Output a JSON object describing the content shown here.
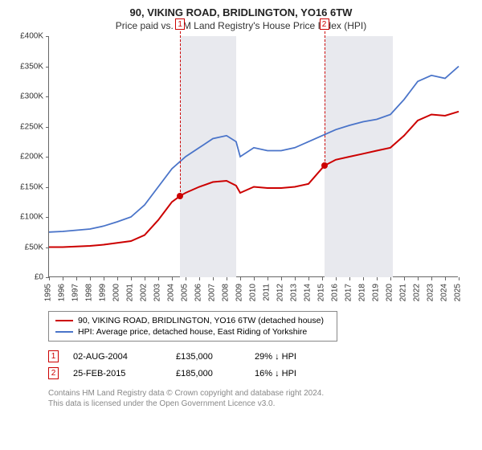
{
  "title": "90, VIKING ROAD, BRIDLINGTON, YO16 6TW",
  "subtitle": "Price paid vs. HM Land Registry's House Price Index (HPI)",
  "chart": {
    "type": "line",
    "background_color": "#ffffff",
    "shade_color": "#e8e9ee",
    "axis_color": "#666666",
    "ylim": [
      0,
      400000
    ],
    "ytick_step": 50000,
    "y_ticks": [
      "£0",
      "£50K",
      "£100K",
      "£150K",
      "£200K",
      "£250K",
      "£300K",
      "£350K",
      "£400K"
    ],
    "xlim": [
      1995,
      2025
    ],
    "x_ticks": [
      "1995",
      "1996",
      "1997",
      "1998",
      "1999",
      "2000",
      "2001",
      "2002",
      "2003",
      "2004",
      "2005",
      "2006",
      "2007",
      "2008",
      "2009",
      "2010",
      "2011",
      "2012",
      "2013",
      "2014",
      "2015",
      "2016",
      "2017",
      "2018",
      "2019",
      "2020",
      "2021",
      "2022",
      "2023",
      "2024",
      "2025"
    ],
    "shade_ranges": [
      [
        2004.6,
        2008.7
      ],
      [
        2015.15,
        2020.2
      ]
    ],
    "series": [
      {
        "name": "property",
        "label": "90, VIKING ROAD, BRIDLINGTON, YO16 6TW (detached house)",
        "color": "#cc0000",
        "line_width": 2,
        "points": [
          [
            1995,
            50000
          ],
          [
            1996,
            50000
          ],
          [
            1997,
            51000
          ],
          [
            1998,
            52000
          ],
          [
            1999,
            54000
          ],
          [
            2000,
            57000
          ],
          [
            2001,
            60000
          ],
          [
            2002,
            70000
          ],
          [
            2003,
            95000
          ],
          [
            2004,
            125000
          ],
          [
            2004.6,
            135000
          ],
          [
            2005,
            140000
          ],
          [
            2006,
            150000
          ],
          [
            2007,
            158000
          ],
          [
            2008,
            160000
          ],
          [
            2008.7,
            152000
          ],
          [
            2009,
            140000
          ],
          [
            2010,
            150000
          ],
          [
            2011,
            148000
          ],
          [
            2012,
            148000
          ],
          [
            2013,
            150000
          ],
          [
            2014,
            155000
          ],
          [
            2015.15,
            185000
          ],
          [
            2016,
            195000
          ],
          [
            2017,
            200000
          ],
          [
            2018,
            205000
          ],
          [
            2019,
            210000
          ],
          [
            2020,
            215000
          ],
          [
            2021,
            235000
          ],
          [
            2022,
            260000
          ],
          [
            2023,
            270000
          ],
          [
            2024,
            268000
          ],
          [
            2025,
            275000
          ]
        ]
      },
      {
        "name": "hpi",
        "label": "HPI: Average price, detached house, East Riding of Yorkshire",
        "color": "#4a74c9",
        "line_width": 1.8,
        "points": [
          [
            1995,
            75000
          ],
          [
            1996,
            76000
          ],
          [
            1997,
            78000
          ],
          [
            1998,
            80000
          ],
          [
            1999,
            85000
          ],
          [
            2000,
            92000
          ],
          [
            2001,
            100000
          ],
          [
            2002,
            120000
          ],
          [
            2003,
            150000
          ],
          [
            2004,
            180000
          ],
          [
            2005,
            200000
          ],
          [
            2006,
            215000
          ],
          [
            2007,
            230000
          ],
          [
            2008,
            235000
          ],
          [
            2008.7,
            225000
          ],
          [
            2009,
            200000
          ],
          [
            2010,
            215000
          ],
          [
            2011,
            210000
          ],
          [
            2012,
            210000
          ],
          [
            2013,
            215000
          ],
          [
            2014,
            225000
          ],
          [
            2015,
            235000
          ],
          [
            2016,
            245000
          ],
          [
            2017,
            252000
          ],
          [
            2018,
            258000
          ],
          [
            2019,
            262000
          ],
          [
            2020,
            270000
          ],
          [
            2021,
            295000
          ],
          [
            2022,
            325000
          ],
          [
            2023,
            335000
          ],
          [
            2024,
            330000
          ],
          [
            2025,
            350000
          ]
        ]
      }
    ],
    "markers": [
      {
        "n": "1",
        "x": 2004.6,
        "y": 135000,
        "dot_color": "#cc0000"
      },
      {
        "n": "2",
        "x": 2015.15,
        "y": 185000,
        "dot_color": "#cc0000"
      }
    ]
  },
  "legend": {
    "item1": "90, VIKING ROAD, BRIDLINGTON, YO16 6TW (detached house)",
    "item2": "HPI: Average price, detached house, East Riding of Yorkshire"
  },
  "events": [
    {
      "n": "1",
      "date": "02-AUG-2004",
      "price": "£135,000",
      "pct": "29% ↓ HPI"
    },
    {
      "n": "2",
      "date": "25-FEB-2015",
      "price": "£185,000",
      "pct": "16% ↓ HPI"
    }
  ],
  "footer": {
    "line1": "Contains HM Land Registry data © Crown copyright and database right 2024.",
    "line2": "This data is licensed under the Open Government Licence v3.0."
  }
}
